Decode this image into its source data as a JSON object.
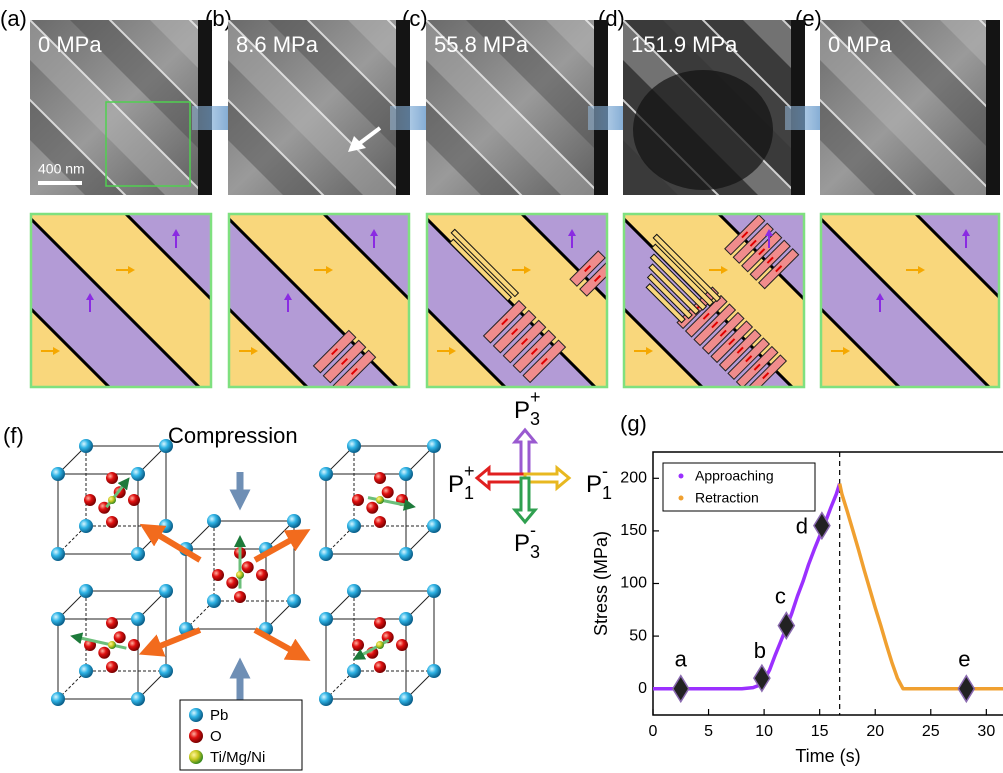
{
  "panel_labels": [
    "(a)",
    "(b)",
    "(c)",
    "(d)",
    "(e)",
    "(f)",
    "(g)"
  ],
  "tem_labels": [
    "0 MPa",
    "8.6 MPa",
    "55.8 MPa",
    "151.9 MPa",
    "0 MPa"
  ],
  "scale_bar": "400 nm",
  "compression": "Compression",
  "atom_legend": [
    "Pb",
    "O",
    "Ti/Mg/Ni"
  ],
  "polarization": [
    {
      "main": "P",
      "sub": "3",
      "sup": "+"
    },
    {
      "main": "P",
      "sub": "1",
      "sup": "+"
    },
    {
      "main": "P",
      "sub": "1",
      "sup": "-"
    },
    {
      "main": "P",
      "sub": "3",
      "sup": "-"
    }
  ],
  "chart_data": {
    "type": "line",
    "x_label": "Time (s)",
    "y_label": "Stress (MPa)",
    "xlim": [
      0,
      31.5
    ],
    "xticks": [
      0,
      5,
      10,
      15,
      20,
      25,
      30
    ],
    "ylim": [
      -25,
      225
    ],
    "yticks": [
      0,
      50,
      100,
      150,
      200
    ],
    "legend": "upper left",
    "vline": 16.8,
    "series": [
      {
        "name": "Approaching",
        "color": "#9b30ff",
        "x": [
          0,
          1,
          2,
          3,
          4,
          5,
          6,
          7,
          8,
          9,
          9.5,
          10,
          10.5,
          11,
          11.5,
          12,
          12.5,
          13,
          13.5,
          14,
          14.5,
          15,
          15.5,
          16,
          16.5,
          16.8
        ],
        "values": [
          0,
          0,
          0,
          0,
          0,
          0,
          0,
          0,
          0,
          1,
          3,
          8,
          18,
          32,
          45,
          58,
          72,
          88,
          102,
          118,
          132,
          145,
          158,
          172,
          185,
          195
        ]
      },
      {
        "name": "Retraction",
        "color": "#f0a030",
        "x": [
          16.8,
          17,
          17.5,
          18,
          18.5,
          19,
          19.5,
          20,
          20.5,
          21,
          21.5,
          22,
          22.5,
          23,
          24,
          25,
          26,
          27,
          28,
          29,
          30,
          31,
          31.5
        ],
        "values": [
          195,
          185,
          168,
          150,
          132,
          113,
          95,
          77,
          60,
          42,
          25,
          10,
          0,
          0,
          0,
          0,
          0,
          0,
          0,
          0,
          0,
          0,
          0
        ]
      }
    ],
    "markers": [
      {
        "label": "a",
        "x": 2.5,
        "y": 0
      },
      {
        "label": "b",
        "x": 9.8,
        "y": 10
      },
      {
        "label": "c",
        "x": 12,
        "y": 60
      },
      {
        "label": "d",
        "x": 15.2,
        "y": 155
      },
      {
        "label": "e",
        "x": 28.2,
        "y": 0
      }
    ]
  }
}
